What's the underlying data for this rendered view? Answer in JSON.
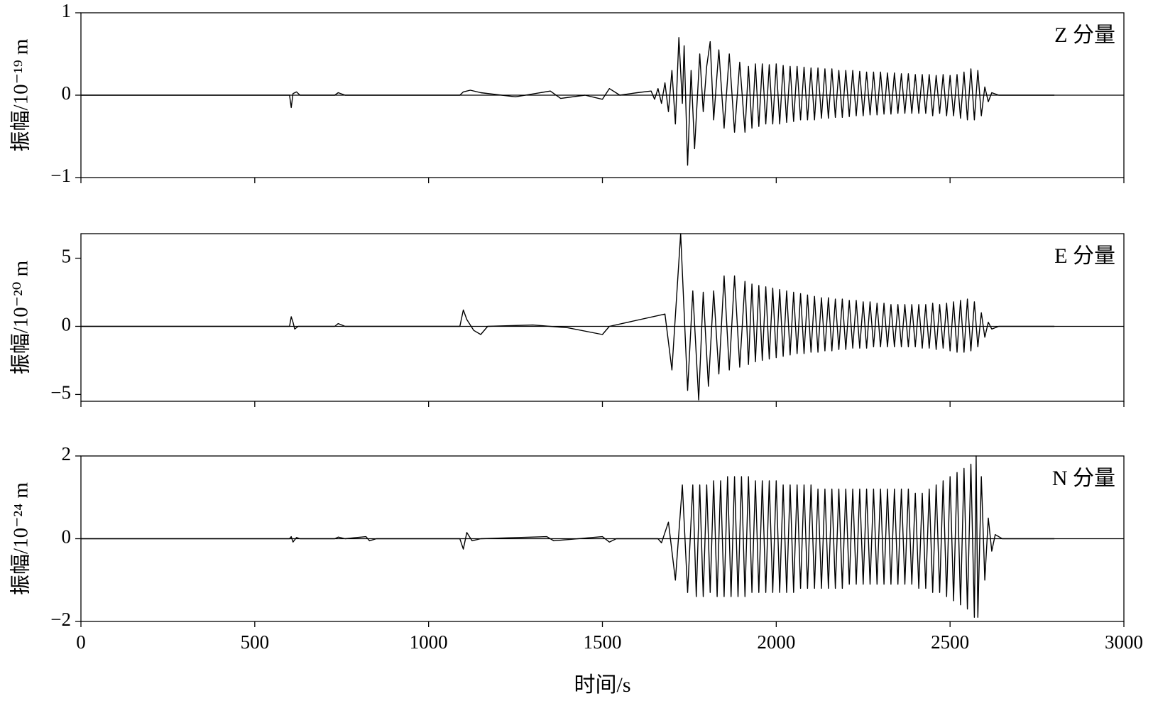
{
  "chart_data": [
    {
      "type": "line",
      "annotation": "Z 分量",
      "ylabel": "振幅/10⁻¹⁹ m",
      "xlim": [
        0,
        3000
      ],
      "xticks": [
        0,
        500,
        1000,
        1500,
        2000,
        2500,
        3000
      ],
      "xtick_labels": false,
      "ylim": [
        -1,
        1
      ],
      "yticks": [
        {
          "value": -1,
          "label": "−1"
        },
        0,
        1
      ],
      "zero_line": true,
      "x": [
        0,
        600,
        605,
        610,
        620,
        630,
        730,
        740,
        760,
        1090,
        1100,
        1120,
        1150,
        1250,
        1350,
        1380,
        1450,
        1500,
        1520,
        1550,
        1600,
        1640,
        1650,
        1660,
        1670,
        1680,
        1690,
        1700,
        1710,
        1720,
        1730,
        1735,
        1745,
        1755,
        1765,
        1780,
        1790,
        1800,
        1810,
        1820,
        1835,
        1850,
        1865,
        1880,
        1895,
        1910,
        1920,
        1930,
        1940,
        1950,
        1960,
        1970,
        1980,
        1990,
        2000,
        2010,
        2020,
        2030,
        2040,
        2050,
        2060,
        2070,
        2080,
        2090,
        2100,
        2110,
        2120,
        2130,
        2140,
        2150,
        2160,
        2170,
        2180,
        2190,
        2200,
        2210,
        2220,
        2230,
        2240,
        2250,
        2260,
        2270,
        2280,
        2290,
        2300,
        2310,
        2320,
        2330,
        2340,
        2350,
        2360,
        2370,
        2380,
        2390,
        2400,
        2410,
        2420,
        2430,
        2440,
        2450,
        2460,
        2470,
        2480,
        2490,
        2500,
        2510,
        2520,
        2530,
        2540,
        2550,
        2560,
        2570,
        2580,
        2590,
        2600,
        2610,
        2620,
        2640,
        2800
      ],
      "series": [
        {
          "color": "#000000",
          "values": [
            0,
            0,
            -0.15,
            0.02,
            0.04,
            0,
            0,
            0.03,
            0,
            0,
            0.04,
            0.06,
            0.03,
            -0.02,
            0.05,
            -0.04,
            0,
            -0.05,
            0.08,
            0,
            0.03,
            0.05,
            -0.05,
            0.08,
            -0.1,
            0.15,
            -0.2,
            0.3,
            -0.35,
            0.7,
            -0.1,
            0.6,
            -0.85,
            0.3,
            -0.65,
            0.5,
            -0.2,
            0.35,
            0.65,
            -0.3,
            0.55,
            -0.4,
            0.5,
            -0.45,
            0.4,
            -0.45,
            0.35,
            -0.4,
            0.38,
            -0.38,
            0.38,
            -0.35,
            0.37,
            -0.35,
            0.38,
            -0.35,
            0.36,
            -0.33,
            0.35,
            -0.32,
            0.35,
            -0.3,
            0.34,
            -0.3,
            0.33,
            -0.3,
            0.33,
            -0.28,
            0.32,
            -0.28,
            0.32,
            -0.27,
            0.3,
            -0.27,
            0.3,
            -0.26,
            0.3,
            -0.25,
            0.29,
            -0.25,
            0.28,
            -0.24,
            0.28,
            -0.24,
            0.28,
            -0.23,
            0.27,
            -0.23,
            0.27,
            -0.22,
            0.26,
            -0.22,
            0.26,
            -0.22,
            0.25,
            -0.22,
            0.25,
            -0.22,
            0.25,
            -0.25,
            0.24,
            -0.22,
            0.25,
            -0.25,
            0.24,
            -0.25,
            0.25,
            -0.28,
            0.28,
            -0.3,
            0.32,
            -0.3,
            0.3,
            -0.25,
            0.1,
            -0.08,
            0.03,
            0,
            0
          ]
        }
      ]
    },
    {
      "type": "line",
      "annotation": "E 分量",
      "ylabel": "振幅/10⁻²⁰ m",
      "xlim": [
        0,
        3000
      ],
      "xticks": [
        0,
        500,
        1000,
        1500,
        2000,
        2500,
        3000
      ],
      "xtick_labels": false,
      "ylim": [
        -5.5,
        6.8
      ],
      "yticks": [
        {
          "value": -5,
          "label": "−5"
        },
        0,
        5
      ],
      "zero_line": true,
      "x": [
        0,
        600,
        605,
        610,
        615,
        625,
        730,
        740,
        760,
        1090,
        1100,
        1110,
        1130,
        1150,
        1170,
        1300,
        1400,
        1500,
        1520,
        1680,
        1700,
        1725,
        1745,
        1760,
        1777,
        1790,
        1805,
        1820,
        1835,
        1850,
        1865,
        1880,
        1895,
        1910,
        1920,
        1930,
        1940,
        1950,
        1960,
        1970,
        1980,
        1990,
        2000,
        2010,
        2020,
        2030,
        2040,
        2050,
        2060,
        2070,
        2080,
        2090,
        2100,
        2110,
        2120,
        2130,
        2140,
        2150,
        2160,
        2170,
        2180,
        2190,
        2200,
        2210,
        2220,
        2230,
        2240,
        2250,
        2260,
        2270,
        2280,
        2290,
        2300,
        2310,
        2320,
        2330,
        2340,
        2350,
        2360,
        2370,
        2380,
        2390,
        2400,
        2410,
        2420,
        2430,
        2440,
        2450,
        2460,
        2470,
        2480,
        2490,
        2500,
        2510,
        2520,
        2530,
        2540,
        2550,
        2560,
        2570,
        2580,
        2590,
        2600,
        2610,
        2620,
        2640,
        2800
      ],
      "series": [
        {
          "color": "#000000",
          "values": [
            0,
            0,
            0.7,
            0.3,
            -0.2,
            0,
            0,
            0.2,
            0,
            0,
            1.2,
            0.5,
            -0.3,
            -0.6,
            0,
            0.1,
            -0.1,
            -0.6,
            0,
            0.9,
            -3.2,
            6.8,
            -4.7,
            2.6,
            -5.4,
            2.5,
            -4.4,
            2.6,
            -3.5,
            3.7,
            -3.2,
            3.7,
            -3,
            3.3,
            -2.8,
            3.1,
            -2.6,
            3.0,
            -2.5,
            2.9,
            -2.4,
            2.8,
            -2.3,
            2.7,
            -2.2,
            2.6,
            -2.1,
            2.5,
            -2.0,
            2.4,
            -2.0,
            2.3,
            -1.9,
            2.2,
            -1.9,
            2.1,
            -1.8,
            2.1,
            -1.8,
            2.0,
            -1.7,
            2.0,
            -1.7,
            1.9,
            -1.6,
            1.9,
            -1.6,
            1.8,
            -1.6,
            1.8,
            -1.5,
            1.7,
            -1.5,
            1.7,
            -1.5,
            1.6,
            -1.5,
            1.6,
            -1.5,
            1.6,
            -1.5,
            1.6,
            -1.5,
            1.6,
            -1.6,
            1.6,
            -1.6,
            1.7,
            -1.7,
            1.6,
            -1.6,
            1.7,
            -1.8,
            1.8,
            -1.9,
            1.9,
            -1.9,
            2.0,
            -1.8,
            1.8,
            -1.5,
            1.0,
            -0.8,
            0.3,
            -0.2,
            0,
            0
          ]
        }
      ]
    },
    {
      "type": "line",
      "annotation": "N 分量",
      "ylabel": "振幅/10⁻²⁴ m",
      "xlabel": "时间/s",
      "xlim": [
        0,
        3000
      ],
      "xticks": [
        0,
        500,
        1000,
        1500,
        2000,
        2500,
        3000
      ],
      "xtick_labels": true,
      "ylim": [
        -2,
        2
      ],
      "yticks": [
        {
          "value": -2,
          "label": "−2"
        },
        0,
        2
      ],
      "zero_line": true,
      "x": [
        0,
        600,
        605,
        610,
        620,
        630,
        730,
        740,
        760,
        820,
        830,
        850,
        1090,
        1100,
        1110,
        1125,
        1150,
        1340,
        1360,
        1500,
        1520,
        1540,
        1660,
        1670,
        1690,
        1710,
        1730,
        1745,
        1760,
        1770,
        1780,
        1790,
        1800,
        1810,
        1820,
        1830,
        1840,
        1850,
        1860,
        1870,
        1880,
        1890,
        1900,
        1910,
        1920,
        1930,
        1940,
        1950,
        1960,
        1970,
        1980,
        1990,
        2000,
        2010,
        2020,
        2030,
        2040,
        2050,
        2060,
        2070,
        2080,
        2090,
        2100,
        2110,
        2120,
        2130,
        2140,
        2150,
        2160,
        2170,
        2180,
        2190,
        2200,
        2210,
        2220,
        2230,
        2240,
        2250,
        2260,
        2270,
        2280,
        2290,
        2300,
        2310,
        2320,
        2330,
        2340,
        2350,
        2360,
        2370,
        2380,
        2390,
        2400,
        2410,
        2420,
        2430,
        2440,
        2450,
        2460,
        2470,
        2480,
        2490,
        2500,
        2510,
        2520,
        2530,
        2540,
        2550,
        2560,
        2570,
        2575,
        2580,
        2590,
        2600,
        2610,
        2620,
        2630,
        2650,
        2800
      ],
      "series": [
        {
          "color": "#000000",
          "values": [
            0,
            0,
            0.05,
            -0.08,
            0.03,
            0,
            0,
            0.04,
            0,
            0.05,
            -0.05,
            0,
            0,
            -0.25,
            0.15,
            -0.05,
            0,
            0.05,
            -0.05,
            0.05,
            -0.08,
            0,
            0,
            -0.1,
            0.4,
            -1.0,
            1.3,
            -1.3,
            1.3,
            -1.4,
            1.3,
            -1.4,
            1.3,
            -1.3,
            1.4,
            -1.4,
            1.4,
            -1.4,
            1.5,
            -1.4,
            1.5,
            -1.4,
            1.5,
            -1.4,
            1.5,
            -1.3,
            1.4,
            -1.3,
            1.4,
            -1.3,
            1.4,
            -1.3,
            1.4,
            -1.3,
            1.3,
            -1.3,
            1.3,
            -1.3,
            1.3,
            -1.2,
            1.3,
            -1.2,
            1.3,
            -1.2,
            1.2,
            -1.2,
            1.2,
            -1.2,
            1.2,
            -1.2,
            1.2,
            -1.2,
            1.2,
            -1.1,
            1.2,
            -1.1,
            1.2,
            -1.1,
            1.2,
            -1.1,
            1.2,
            -1.1,
            1.2,
            -1.1,
            1.2,
            -1.1,
            1.2,
            -1.1,
            1.2,
            -1.1,
            1.2,
            -1.1,
            1.1,
            -1.2,
            1.1,
            -1.2,
            1.2,
            -1.3,
            1.3,
            -1.3,
            1.4,
            -1.4,
            1.5,
            -1.5,
            1.6,
            -1.6,
            1.7,
            -1.7,
            1.8,
            -1.9,
            2.0,
            -1.9,
            1.5,
            -1.0,
            0.5,
            -0.3,
            0.1,
            0,
            0
          ]
        }
      ]
    }
  ]
}
